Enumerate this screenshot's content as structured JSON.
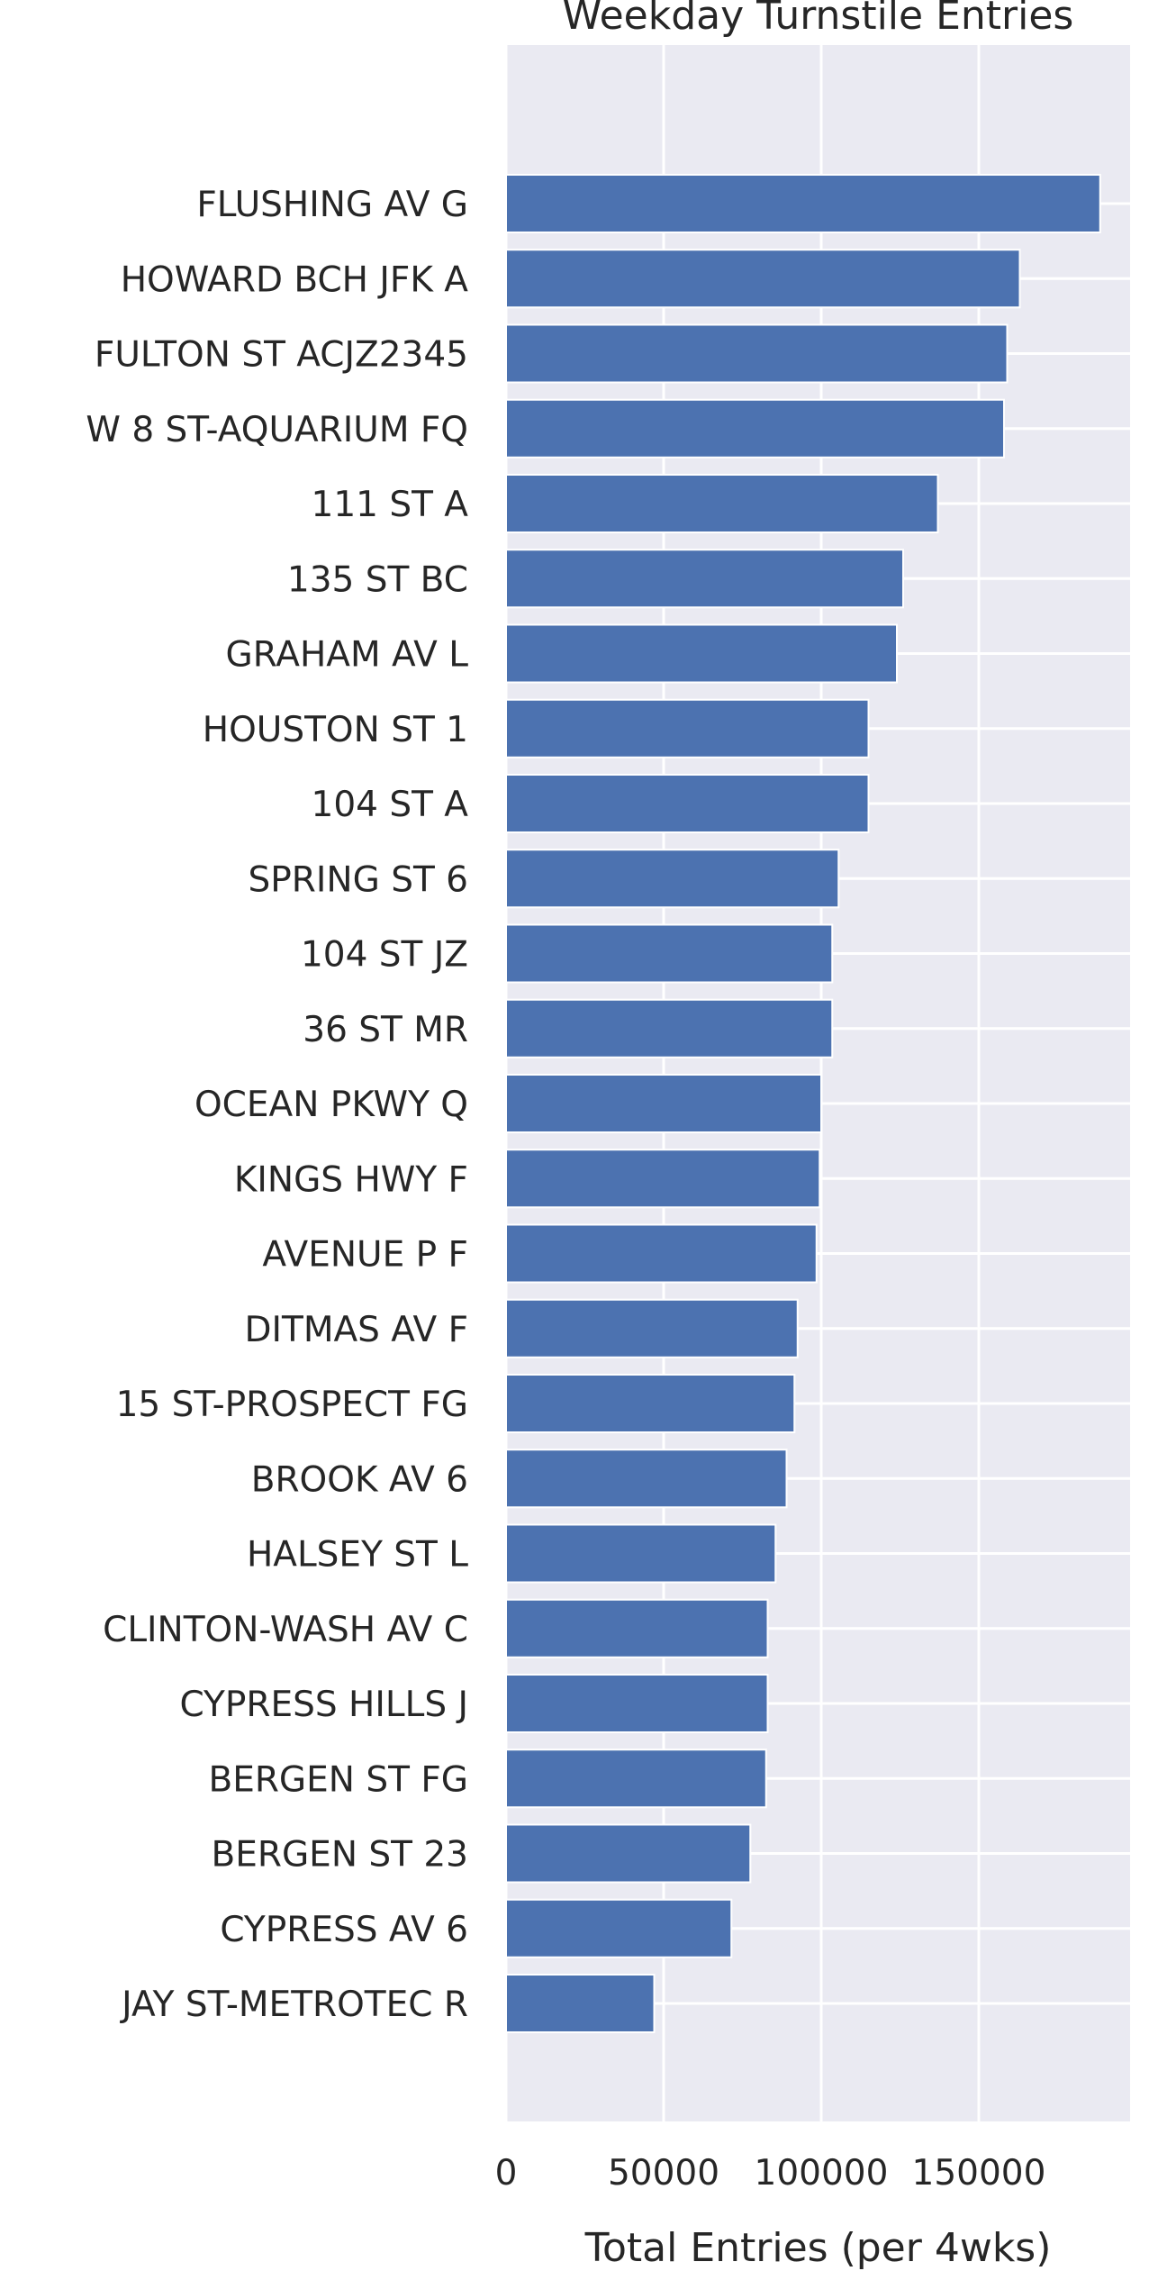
{
  "chart_data": {
    "type": "bar",
    "orientation": "horizontal",
    "title": "Weekday Turnstile Entries",
    "xlabel": "Total Entries (per 4wks)",
    "ylabel": "",
    "xlim": [
      0,
      198000
    ],
    "xticks": [
      0,
      50000,
      100000,
      150000
    ],
    "grid": true,
    "categories": [
      "FLUSHING AV G",
      "HOWARD BCH JFK A",
      "FULTON ST ACJZ2345",
      "W 8 ST-AQUARIUM FQ",
      "111 ST A",
      "135 ST BC",
      "GRAHAM AV L",
      "HOUSTON ST 1",
      "104 ST A",
      "SPRING ST 6",
      "104 ST JZ",
      "36 ST MR",
      "OCEAN PKWY Q",
      "KINGS HWY F",
      "AVENUE P F",
      "DITMAS AV F",
      "15 ST-PROSPECT FG",
      "BROOK AV 6",
      "HALSEY ST L",
      "CLINTON-WASH AV C",
      "CYPRESS HILLS J",
      "BERGEN ST FG",
      "BERGEN ST 23",
      "CYPRESS AV 6",
      "JAY ST-METROTEC R"
    ],
    "values": [
      188500,
      163000,
      159000,
      158000,
      137000,
      126000,
      124000,
      115000,
      115000,
      105500,
      103500,
      103500,
      100000,
      99500,
      98500,
      92500,
      91500,
      89000,
      85500,
      83000,
      83000,
      82500,
      77500,
      71500,
      47000
    ],
    "colors": {
      "bar": "#4c72b0",
      "plot_background": "#eaeaf2",
      "grid": "#ffffff",
      "text": "#262626"
    }
  }
}
